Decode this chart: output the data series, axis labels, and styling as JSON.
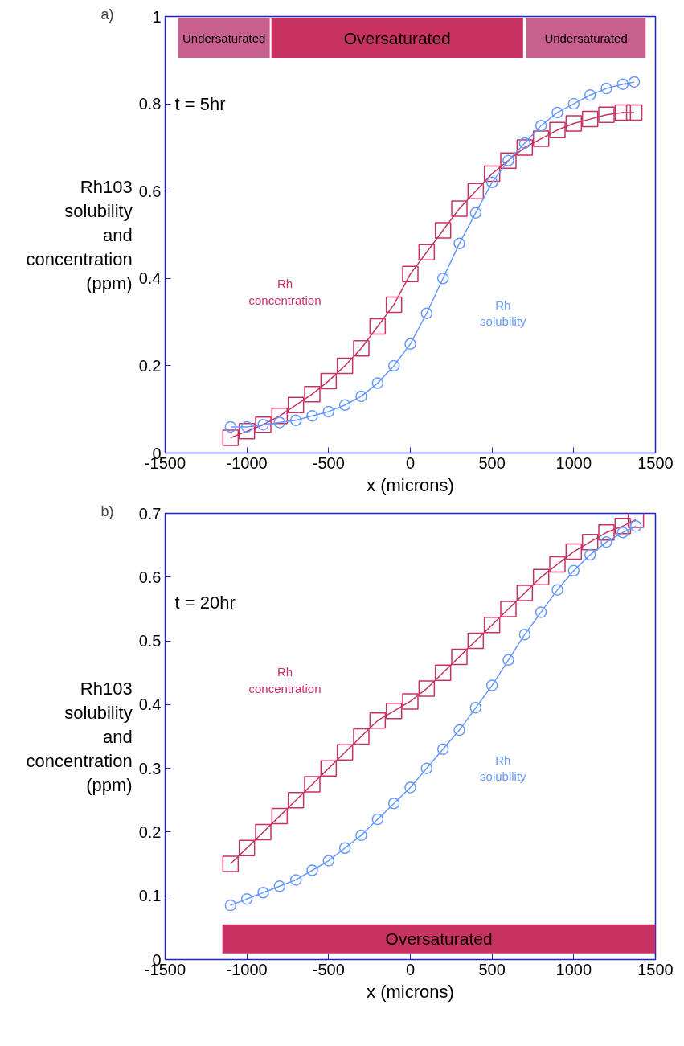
{
  "chart_data": [
    {
      "type": "line",
      "xlabel": "x (microns)",
      "ylabel": "Rh103 solubility and concentration (ppm)",
      "xlim": [
        -1500,
        1500
      ],
      "xticks": [
        -1500,
        -1000,
        -500,
        0,
        500,
        1000,
        1500
      ],
      "ylim": [
        0,
        1
      ],
      "yticks": [
        0,
        0.2,
        0.4,
        0.6,
        0.8,
        1
      ],
      "grid": false,
      "x": [
        -1100,
        -1000,
        -900,
        -800,
        -700,
        -600,
        -500,
        -400,
        -300,
        -200,
        -100,
        0,
        100,
        200,
        300,
        400,
        500,
        600,
        700,
        800,
        900,
        1000,
        1100,
        1200,
        1300,
        1370
      ],
      "series": [
        {
          "name": "Rh\nconcentration",
          "color": "#c83262",
          "marker": "square",
          "values": [
            0.035,
            0.05,
            0.065,
            0.085,
            0.11,
            0.135,
            0.165,
            0.2,
            0.24,
            0.29,
            0.34,
            0.41,
            0.46,
            0.51,
            0.56,
            0.6,
            0.64,
            0.67,
            0.7,
            0.72,
            0.74,
            0.755,
            0.765,
            0.775,
            0.78,
            0.78
          ]
        },
        {
          "name": "Rh\nsolubility",
          "color": "#6699ff",
          "marker": "circle",
          "values": [
            0.06,
            0.06,
            0.065,
            0.07,
            0.075,
            0.085,
            0.095,
            0.11,
            0.13,
            0.16,
            0.2,
            0.25,
            0.32,
            0.4,
            0.48,
            0.55,
            0.62,
            0.67,
            0.71,
            0.75,
            0.78,
            0.8,
            0.82,
            0.835,
            0.845,
            0.85
          ]
        }
      ],
      "bands": [
        {
          "axis": "x",
          "from": -1420,
          "to": -860,
          "label": "Undersaturated",
          "color": "#c8608f"
        },
        {
          "axis": "x",
          "from": -850,
          "to": 690,
          "label": "Oversaturated",
          "color": "#c83262"
        },
        {
          "axis": "x",
          "from": 710,
          "to": 1440,
          "label": "Undersaturated",
          "color": "#c8608f"
        }
      ],
      "annotations": [
        "a)",
        "t = 5hr"
      ]
    },
    {
      "type": "line",
      "xlabel": "x (microns)",
      "ylabel": "Rh103 solubility and concentration (ppm)",
      "xlim": [
        -1500,
        1500
      ],
      "xticks": [
        -1500,
        -1000,
        -500,
        0,
        500,
        1000,
        1500
      ],
      "ylim": [
        0,
        0.7
      ],
      "yticks": [
        0,
        0.1,
        0.2,
        0.3,
        0.4,
        0.5,
        0.6,
        0.7
      ],
      "grid": false,
      "x": [
        -1100,
        -1000,
        -900,
        -800,
        -700,
        -600,
        -500,
        -400,
        -300,
        -200,
        -100,
        0,
        100,
        200,
        300,
        400,
        500,
        600,
        700,
        800,
        900,
        1000,
        1100,
        1200,
        1300,
        1380
      ],
      "series": [
        {
          "name": "Rh\nconcentration",
          "color": "#c83262",
          "marker": "square",
          "values": [
            0.15,
            0.175,
            0.2,
            0.225,
            0.25,
            0.275,
            0.3,
            0.325,
            0.35,
            0.375,
            0.39,
            0.405,
            0.425,
            0.45,
            0.475,
            0.5,
            0.525,
            0.55,
            0.575,
            0.6,
            0.62,
            0.64,
            0.655,
            0.67,
            0.68,
            0.69
          ]
        },
        {
          "name": "Rh\nsolubility",
          "color": "#6699ff",
          "marker": "circle",
          "values": [
            0.085,
            0.095,
            0.105,
            0.115,
            0.125,
            0.14,
            0.155,
            0.175,
            0.195,
            0.22,
            0.245,
            0.27,
            0.3,
            0.33,
            0.36,
            0.395,
            0.43,
            0.47,
            0.51,
            0.545,
            0.58,
            0.61,
            0.635,
            0.655,
            0.67,
            0.68
          ]
        }
      ],
      "bands": [
        {
          "axis": "x",
          "from": -1150,
          "to": 1500,
          "label": "Oversaturated",
          "color": "#c83262"
        }
      ],
      "annotations": [
        "b)",
        "t = 20hr"
      ]
    }
  ]
}
